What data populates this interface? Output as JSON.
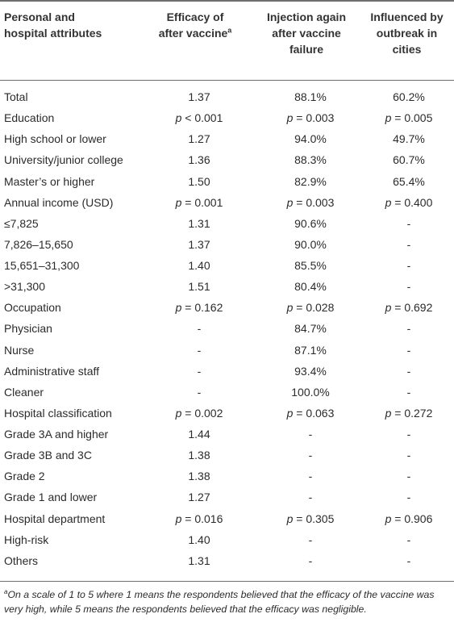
{
  "table": {
    "headers": [
      [
        "Personal and",
        "hospital attributes"
      ],
      [
        "Efficacy of",
        "after vaccine"
      ],
      [
        "Injection again",
        "after vaccine",
        "failure"
      ],
      [
        "Influenced by",
        "outbreak in",
        "cities"
      ]
    ],
    "header_sup": "a",
    "rows": [
      [
        "Total",
        "1.37",
        "88.1%",
        "60.2%"
      ],
      [
        "Education",
        "p < 0.001",
        "p = 0.003",
        "p = 0.005"
      ],
      [
        "High school or lower",
        "1.27",
        "94.0%",
        "49.7%"
      ],
      [
        "University/junior college",
        "1.36",
        "88.3%",
        "60.7%"
      ],
      [
        "Master’s or higher",
        "1.50",
        "82.9%",
        "65.4%"
      ],
      [
        "Annual income (USD)",
        "p = 0.001",
        "p = 0.003",
        "p = 0.400"
      ],
      [
        "≤7,825",
        "1.31",
        "90.6%",
        "-"
      ],
      [
        "7,826–15,650",
        "1.37",
        "90.0%",
        "-"
      ],
      [
        "15,651–31,300",
        "1.40",
        "85.5%",
        "-"
      ],
      [
        ">31,300",
        "1.51",
        "80.4%",
        "-"
      ],
      [
        "Occupation",
        "p = 0.162",
        "p = 0.028",
        "p = 0.692"
      ],
      [
        "Physician",
        "-",
        "84.7%",
        "-"
      ],
      [
        "Nurse",
        "-",
        "87.1%",
        "-"
      ],
      [
        "Administrative staff",
        "-",
        "93.4%",
        "-"
      ],
      [
        "Cleaner",
        "-",
        "100.0%",
        "-"
      ],
      [
        "Hospital classification",
        "p = 0.002",
        "p = 0.063",
        "p = 0.272"
      ],
      [
        "Grade 3A and higher",
        "1.44",
        "-",
        "-"
      ],
      [
        "Grade 3B and 3C",
        "1.38",
        "-",
        "-"
      ],
      [
        "Grade 2",
        "1.38",
        "-",
        "-"
      ],
      [
        "Grade 1 and lower",
        "1.27",
        "-",
        "-"
      ],
      [
        "Hospital department",
        "p = 0.016",
        "p = 0.305",
        "p = 0.906"
      ],
      [
        "High-risk",
        "1.40",
        "-",
        "-"
      ],
      [
        "Others",
        "1.31",
        "-",
        "-"
      ]
    ]
  },
  "footnote": {
    "marker": "a",
    "text": "On a scale of 1 to 5 where 1 means the respondents believed that the efficacy of the vaccine was very high, while 5 means the respondents believed that the efficacy was negligible."
  }
}
